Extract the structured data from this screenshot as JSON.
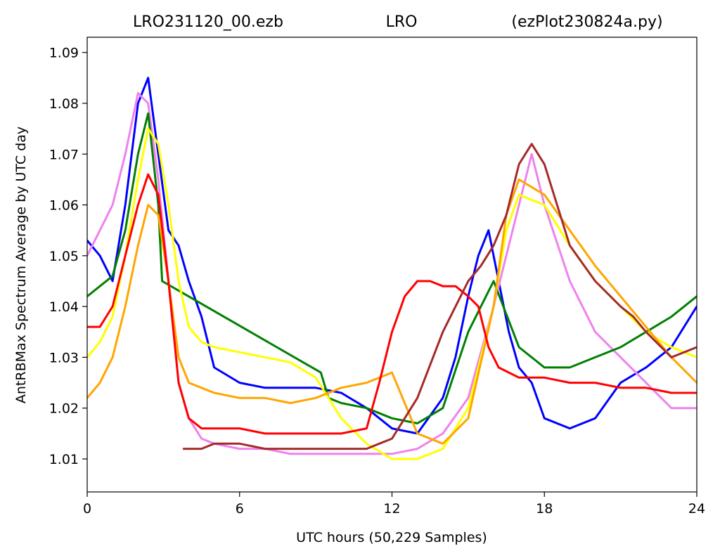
{
  "chart_data": {
    "type": "line",
    "title_parts": [
      "LRO231120_00.ezb",
      "LRO",
      "(ezPlot230824a.py)"
    ],
    "xlabel": "UTC hours  (50,229 Samples)",
    "ylabel": "AntRBMax Spectrum Average by UTC day",
    "xlim": [
      0,
      24
    ],
    "ylim": [
      1.0035,
      1.093
    ],
    "xticks": [
      0,
      6,
      12,
      18,
      24
    ],
    "xtick_labels": [
      "0",
      "6",
      "12",
      "18",
      "24"
    ],
    "yticks": [
      1.01,
      1.02,
      1.03,
      1.04,
      1.05,
      1.06,
      1.07,
      1.08,
      1.09
    ],
    "ytick_labels": [
      "1.01",
      "1.02",
      "1.03",
      "1.04",
      "1.05",
      "1.06",
      "1.07",
      "1.08",
      "1.09"
    ],
    "grid": false,
    "series": [
      {
        "color": "#0000ff",
        "x": [
          0,
          0.5,
          1.0,
          1.5,
          2.0,
          2.4,
          2.8,
          3.2,
          3.6,
          4.0,
          4.5,
          5.0,
          6.0,
          7.0,
          8.0,
          9.0,
          10.0,
          11.0,
          12.0,
          13.0,
          14.0,
          14.5,
          15.0,
          15.4,
          15.8,
          16.2,
          16.6,
          17.0,
          17.5,
          18.0,
          19.0,
          20.0,
          21.0,
          22.0,
          23.0,
          24.0
        ],
        "y": [
          1.053,
          1.05,
          1.045,
          1.06,
          1.08,
          1.085,
          1.07,
          1.055,
          1.052,
          1.045,
          1.038,
          1.028,
          1.025,
          1.024,
          1.024,
          1.024,
          1.023,
          1.02,
          1.016,
          1.015,
          1.022,
          1.03,
          1.042,
          1.05,
          1.055,
          1.045,
          1.035,
          1.028,
          1.025,
          1.018,
          1.016,
          1.018,
          1.025,
          1.028,
          1.032,
          1.04
        ]
      },
      {
        "color": "#ee82ee",
        "x": [
          0,
          0.5,
          1.0,
          1.5,
          2.0,
          2.4,
          2.8,
          3.2,
          3.6,
          4.0,
          4.5,
          5.0,
          6.0,
          7.0,
          8.0,
          9.0,
          10.0,
          11.0,
          12.0,
          13.0,
          14.0,
          15.0,
          16.0,
          17.0,
          17.5,
          18.0,
          19.0,
          20.0,
          21.0,
          22.0,
          23.0,
          24.0
        ],
        "y": [
          1.05,
          1.055,
          1.06,
          1.07,
          1.082,
          1.08,
          1.065,
          1.045,
          1.025,
          1.018,
          1.014,
          1.013,
          1.012,
          1.012,
          1.011,
          1.011,
          1.011,
          1.011,
          1.011,
          1.012,
          1.015,
          1.022,
          1.04,
          1.06,
          1.07,
          1.06,
          1.045,
          1.035,
          1.03,
          1.025,
          1.02,
          1.02
        ]
      },
      {
        "color": "#008000",
        "x": [
          0,
          0.5,
          1.0,
          1.5,
          2.0,
          2.4,
          2.8,
          2.95,
          9.2,
          9.5,
          10.0,
          11.0,
          12.0,
          13.0,
          14.0,
          15.0,
          16.0,
          17.0,
          18.0,
          19.0,
          20.0,
          21.0,
          22.0,
          23.0,
          24.0
        ],
        "y": [
          1.042,
          1.044,
          1.046,
          1.055,
          1.07,
          1.078,
          1.06,
          1.045,
          1.027,
          1.022,
          1.021,
          1.02,
          1.018,
          1.017,
          1.02,
          1.035,
          1.045,
          1.032,
          1.028,
          1.028,
          1.03,
          1.032,
          1.035,
          1.038,
          1.042
        ]
      },
      {
        "color": "#ffff00",
        "x": [
          0,
          0.5,
          1.0,
          1.5,
          2.0,
          2.4,
          2.8,
          3.2,
          3.6,
          4.0,
          4.5,
          5.0,
          6.0,
          7.0,
          8.0,
          9.0,
          10.0,
          11.0,
          12.0,
          13.0,
          14.0,
          15.0,
          16.0,
          16.5,
          17.0,
          18.0,
          19.0,
          20.0,
          21.0,
          22.0,
          23.0,
          24.0
        ],
        "y": [
          1.03,
          1.033,
          1.038,
          1.05,
          1.065,
          1.075,
          1.072,
          1.06,
          1.045,
          1.036,
          1.033,
          1.032,
          1.031,
          1.03,
          1.029,
          1.026,
          1.018,
          1.013,
          1.01,
          1.01,
          1.012,
          1.02,
          1.04,
          1.055,
          1.062,
          1.06,
          1.052,
          1.045,
          1.04,
          1.035,
          1.032,
          1.03
        ]
      },
      {
        "color": "#ffa500",
        "x": [
          0,
          0.5,
          1.0,
          1.5,
          2.0,
          2.4,
          2.8,
          3.2,
          3.6,
          4.0,
          4.5,
          5.0,
          6.0,
          7.0,
          8.0,
          9.0,
          10.0,
          11.0,
          12.0,
          13.0,
          14.0,
          15.0,
          16.0,
          16.5,
          17.0,
          18.0,
          19.0,
          20.0,
          21.0,
          22.0,
          23.0,
          24.0
        ],
        "y": [
          1.022,
          1.025,
          1.03,
          1.04,
          1.052,
          1.06,
          1.058,
          1.045,
          1.03,
          1.025,
          1.024,
          1.023,
          1.022,
          1.022,
          1.021,
          1.022,
          1.024,
          1.025,
          1.027,
          1.015,
          1.013,
          1.018,
          1.04,
          1.058,
          1.065,
          1.062,
          1.055,
          1.048,
          1.042,
          1.036,
          1.03,
          1.025
        ]
      },
      {
        "color": "#ff0000",
        "x": [
          0,
          0.5,
          1.0,
          1.5,
          2.0,
          2.4,
          2.8,
          3.2,
          3.6,
          4.0,
          4.5,
          5.0,
          6.0,
          7.0,
          8.0,
          9.0,
          10.0,
          11.0,
          11.5,
          12.0,
          12.5,
          13.0,
          13.5,
          14.0,
          14.5,
          15.0,
          15.4,
          15.8,
          16.2,
          16.6,
          17.0,
          18.0,
          19.0,
          20.0,
          21.0,
          22.0,
          23.0,
          24.0
        ],
        "y": [
          1.036,
          1.036,
          1.04,
          1.05,
          1.06,
          1.066,
          1.062,
          1.045,
          1.025,
          1.018,
          1.016,
          1.016,
          1.016,
          1.015,
          1.015,
          1.015,
          1.015,
          1.016,
          1.025,
          1.035,
          1.042,
          1.045,
          1.045,
          1.044,
          1.044,
          1.042,
          1.04,
          1.032,
          1.028,
          1.027,
          1.026,
          1.026,
          1.025,
          1.025,
          1.024,
          1.024,
          1.023,
          1.023
        ]
      },
      {
        "color": "#a52a2a",
        "x": [
          3.8,
          4.5,
          5.0,
          6.0,
          7.0,
          8.0,
          9.0,
          10.0,
          11.0,
          11.5,
          12.0,
          13.0,
          14.0,
          15.0,
          15.5,
          16.0,
          16.5,
          17.0,
          17.5,
          18.0,
          18.5,
          19.0,
          20.0,
          21.0,
          21.5,
          22.0,
          23.0,
          24.0
        ],
        "y": [
          1.012,
          1.012,
          1.013,
          1.013,
          1.012,
          1.012,
          1.012,
          1.012,
          1.012,
          1.013,
          1.014,
          1.022,
          1.035,
          1.045,
          1.048,
          1.052,
          1.058,
          1.068,
          1.072,
          1.068,
          1.06,
          1.052,
          1.045,
          1.04,
          1.038,
          1.035,
          1.03,
          1.032
        ]
      }
    ]
  }
}
